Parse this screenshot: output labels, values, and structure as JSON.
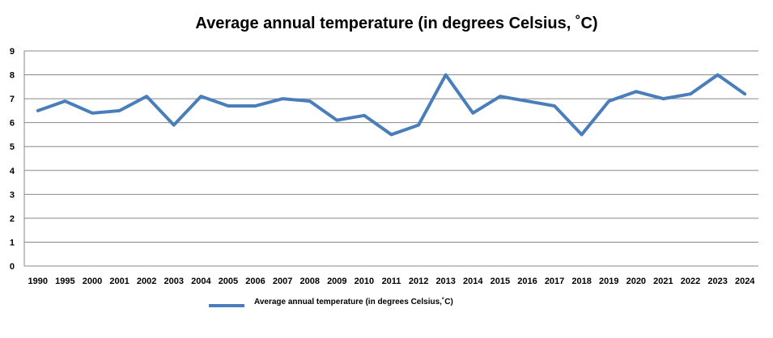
{
  "chart_data": {
    "type": "line",
    "title": "Average annual temperature (in degrees Celsius, ˚C)",
    "xlabel": "",
    "ylabel": "",
    "ylim": [
      0,
      9
    ],
    "yticks": [
      0,
      1,
      2,
      3,
      4,
      5,
      6,
      7,
      8,
      9
    ],
    "grid": true,
    "legend_position": "bottom",
    "categories": [
      "1990",
      "1995",
      "2000",
      "2001",
      "2002",
      "2003",
      "2004",
      "2005",
      "2006",
      "2007",
      "2008",
      "2009",
      "2010",
      "2011",
      "2012",
      "2013",
      "2014",
      "2015",
      "2016",
      "2017",
      "2018",
      "2019",
      "2020",
      "2021",
      "2022",
      "2023",
      "2024"
    ],
    "series": [
      {
        "name": "Average annual  temperature (in degrees Celsius,˚C)",
        "color": "#4a7ebb",
        "values": [
          6.5,
          6.9,
          6.4,
          6.5,
          7.1,
          5.9,
          7.1,
          6.7,
          6.7,
          7.0,
          6.9,
          6.1,
          6.3,
          5.5,
          5.9,
          8.0,
          6.4,
          7.1,
          6.9,
          6.7,
          5.5,
          6.9,
          7.3,
          7.0,
          7.2,
          8.0,
          7.2
        ]
      }
    ]
  }
}
